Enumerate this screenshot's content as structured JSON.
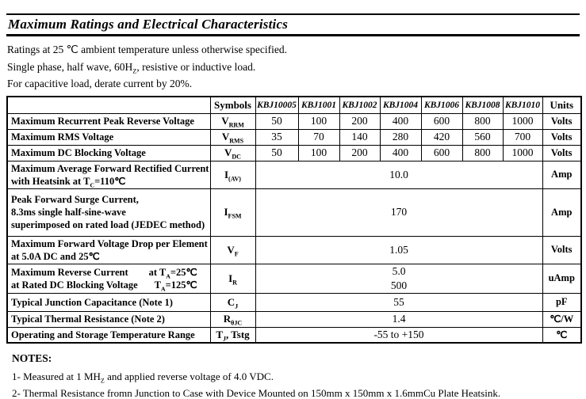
{
  "page": {
    "title": "Maximum Ratings and Electrical Characteristics"
  },
  "intro": [
    [
      {
        "t": "Ratings at 25 ℃ ambient temperature unless otherwise specified."
      }
    ],
    [
      {
        "t": "Single phase, half wave, 60H"
      },
      {
        "s": "Z"
      },
      {
        "t": ", resistive or inductive load."
      }
    ],
    [
      {
        "t": "For capacitive load, derate current by 20%."
      }
    ]
  ],
  "table": {
    "headers": [
      "",
      "Symbols",
      "KBJ10005",
      "KBJ1001",
      "KBJ1002",
      "KBJ1004",
      "KBJ1006",
      "KBJ1008",
      "KBJ1010",
      "Units"
    ],
    "rows": [
      {
        "desc": [
          {
            "left": [
              {
                "t": "Maximum Recurrent Peak Reverse Voltage"
              }
            ]
          }
        ],
        "symbol": [
          {
            "t": "V"
          },
          {
            "s": "RRM"
          }
        ],
        "values": [
          "50",
          "100",
          "200",
          "400",
          "600",
          "800",
          "1000"
        ],
        "unit": "Volts"
      },
      {
        "desc": [
          {
            "left": [
              {
                "t": "Maximum RMS Voltage"
              }
            ]
          }
        ],
        "symbol": [
          {
            "t": "V"
          },
          {
            "s": "RMS"
          }
        ],
        "values": [
          "35",
          "70",
          "140",
          "280",
          "420",
          "560",
          "700"
        ],
        "unit": "Volts"
      },
      {
        "desc": [
          {
            "left": [
              {
                "t": "Maximum DC Blocking Voltage"
              }
            ]
          }
        ],
        "symbol": [
          {
            "t": "V"
          },
          {
            "s": "DC"
          }
        ],
        "values": [
          "50",
          "100",
          "200",
          "400",
          "600",
          "800",
          "1000"
        ],
        "unit": "Volts"
      },
      {
        "desc": [
          {
            "left": [
              {
                "t": "Maximum Average Forward Rectified Current"
              }
            ]
          },
          {
            "left": [
              {
                "t": "with Heatsink at T"
              },
              {
                "s": "C"
              },
              {
                "t": "=110℃"
              }
            ]
          }
        ],
        "symbol": [
          {
            "t": "I"
          },
          {
            "s": "(AV)"
          }
        ],
        "merged": [
          "10.0"
        ],
        "unit": "Amp"
      },
      {
        "desc": [
          {
            "left": [
              {
                "t": "Peak Forward Surge Current,"
              }
            ]
          },
          {
            "left": [
              {
                "t": "8.3ms single half-sine-wave"
              }
            ]
          },
          {
            "left": [
              {
                "t": "superimposed on rated load (JEDEC method)"
              }
            ]
          }
        ],
        "symbol": [
          {
            "t": "I"
          },
          {
            "s": "FSM"
          }
        ],
        "merged": [
          "170"
        ],
        "unit": "Amp"
      },
      {
        "desc": [
          {
            "left": [
              {
                "t": "Maximum Forward Voltage Drop per Element"
              }
            ]
          },
          {
            "left": [
              {
                "t": "at 5.0A DC and 25℃"
              }
            ]
          }
        ],
        "symbol": [
          {
            "t": "V"
          },
          {
            "s": "F"
          }
        ],
        "merged": [
          "1.05"
        ],
        "unit": "Volts"
      },
      {
        "desc": [
          {
            "left": [
              {
                "t": "Maximum Reverse Current"
              }
            ],
            "right": [
              {
                "t": "at T"
              },
              {
                "s": "A"
              },
              {
                "t": "=25℃"
              }
            ]
          },
          {
            "left": [
              {
                "t": "at Rated DC Blocking Voltage"
              }
            ],
            "right": [
              {
                "t": "T"
              },
              {
                "s": "A"
              },
              {
                "t": "=125℃"
              }
            ]
          }
        ],
        "symbol": [
          {
            "t": "I"
          },
          {
            "s": "R"
          }
        ],
        "merged": [
          "5.0",
          "500"
        ],
        "unit": "uAmp"
      },
      {
        "desc": [
          {
            "left": [
              {
                "t": "Typical Junction Capacitance (Note 1)"
              }
            ]
          }
        ],
        "symbol": [
          {
            "t": "C"
          },
          {
            "s": "J"
          }
        ],
        "merged": [
          "55"
        ],
        "unit": "pF"
      },
      {
        "desc": [
          {
            "left": [
              {
                "t": "Typical Thermal Resistance (Note 2)"
              }
            ]
          }
        ],
        "symbol": [
          {
            "t": "R"
          },
          {
            "s": "θJC"
          }
        ],
        "merged": [
          "1.4"
        ],
        "unit": "℃/W"
      },
      {
        "desc": [
          {
            "left": [
              {
                "t": "Operating and Storage Temperature Range"
              }
            ]
          }
        ],
        "symbol": [
          {
            "t": "T"
          },
          {
            "s": "J"
          },
          {
            "t": ",  Tstg"
          }
        ],
        "merged": [
          "-55 to +150"
        ],
        "unit": "℃"
      }
    ]
  },
  "notes": {
    "heading": "NOTES:",
    "items": [
      [
        {
          "t": "1- Measured at 1 MH"
        },
        {
          "s": "Z"
        },
        {
          "t": " and applied reverse voltage of 4.0 VDC."
        }
      ],
      [
        {
          "t": "2- Thermal Resistance fromn Junction to Case with Device Mounted on 150mm x 150mm x 1.6mmCu Plate Heatsink."
        }
      ]
    ]
  }
}
